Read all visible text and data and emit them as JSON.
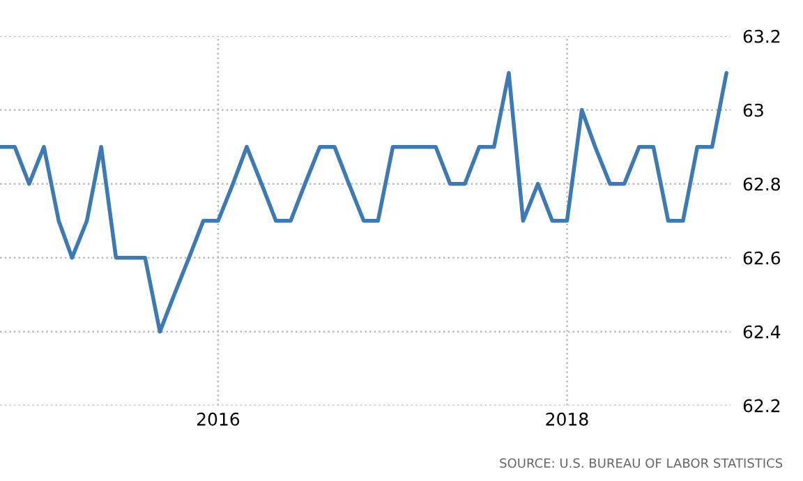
{
  "chart_data": {
    "type": "line",
    "x": [
      "2014-10",
      "2014-11",
      "2014-12",
      "2015-01",
      "2015-02",
      "2015-03",
      "2015-04",
      "2015-05",
      "2015-06",
      "2015-07",
      "2015-08",
      "2015-09",
      "2015-10",
      "2015-11",
      "2015-12",
      "2016-01",
      "2016-02",
      "2016-03",
      "2016-04",
      "2016-05",
      "2016-06",
      "2016-07",
      "2016-08",
      "2016-09",
      "2016-10",
      "2016-11",
      "2016-12",
      "2017-01",
      "2017-02",
      "2017-03",
      "2017-04",
      "2017-05",
      "2017-06",
      "2017-07",
      "2017-08",
      "2017-09",
      "2017-10",
      "2017-11",
      "2017-12",
      "2018-01",
      "2018-02",
      "2018-03",
      "2018-04",
      "2018-05",
      "2018-06",
      "2018-07",
      "2018-08",
      "2018-09",
      "2018-10",
      "2018-11",
      "2018-12"
    ],
    "series": [
      {
        "color": "#3d7ab3",
        "values": [
          62.9,
          62.9,
          62.8,
          62.9,
          62.7,
          62.6,
          62.7,
          62.9,
          62.6,
          62.6,
          62.6,
          62.4,
          62.5,
          62.6,
          62.7,
          62.7,
          62.8,
          62.9,
          62.8,
          62.7,
          62.7,
          62.8,
          62.9,
          62.9,
          62.8,
          62.7,
          62.7,
          62.9,
          62.9,
          62.9,
          62.9,
          62.8,
          62.8,
          62.9,
          62.9,
          63.1,
          62.7,
          62.8,
          62.7,
          62.7,
          63.0,
          62.9,
          62.8,
          62.8,
          62.9,
          62.9,
          62.7,
          62.7,
          62.9,
          62.9,
          63.1
        ]
      }
    ],
    "xlim": [
      "2014-10",
      "2018-12-10"
    ],
    "xticks": [
      {
        "value": "2016-01",
        "label": "2016"
      },
      {
        "value": "2018-01",
        "label": "2018"
      }
    ],
    "ylim": [
      62.2,
      63.2
    ],
    "yticks": [
      62.2,
      62.4,
      62.6,
      62.8,
      63,
      63.2
    ],
    "grid": true,
    "line_style": "solid",
    "annotations": [
      "SOURCE: U.S. BUREAU OF LABOR STATISTICS"
    ]
  }
}
